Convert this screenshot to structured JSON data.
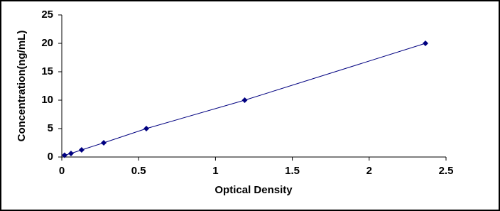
{
  "chart_data": {
    "type": "line",
    "x_label": "Optical Density",
    "y_label": "Concentration(ng/mL)",
    "series": [
      {
        "color": "#000080",
        "x": [
          0.018,
          0.06,
          0.129,
          0.273,
          0.55,
          1.19,
          2.366
        ],
        "values": [
          0.312,
          0.625,
          1.25,
          2.5,
          5,
          10,
          20
        ]
      }
    ],
    "xlim": [
      0,
      2.5
    ],
    "xticks": [
      0,
      0.5,
      1,
      1.5,
      2,
      2.5
    ],
    "ylim": [
      0,
      25
    ],
    "yticks": [
      0,
      5,
      10,
      15,
      20,
      25
    ],
    "grid": false,
    "marker": "diamond"
  }
}
